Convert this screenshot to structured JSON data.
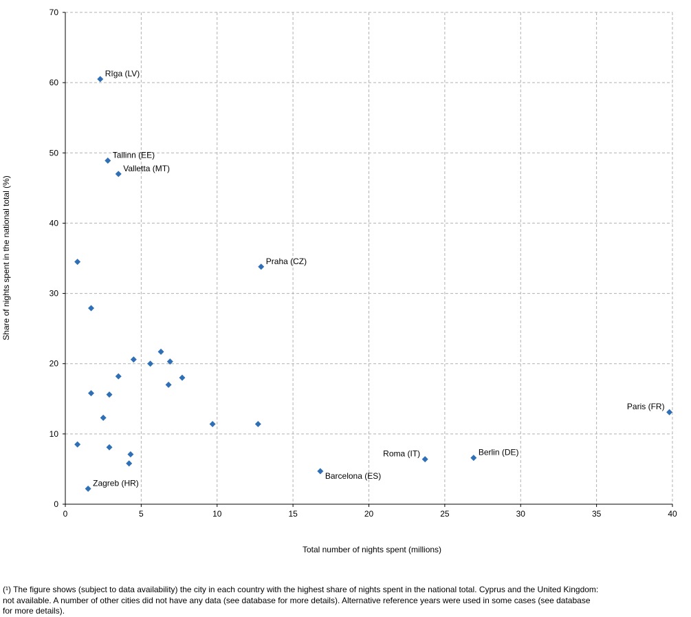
{
  "chart_data": {
    "type": "scatter",
    "xlabel": "Total number of nights spent (millions)",
    "ylabel": "Share of nights spent in the national total (%)",
    "xlim": [
      0,
      40
    ],
    "ylim": [
      0,
      70
    ],
    "x_ticks": [
      0,
      5,
      10,
      15,
      20,
      25,
      30,
      35,
      40
    ],
    "y_ticks": [
      0,
      10,
      20,
      30,
      40,
      50,
      60,
      70
    ],
    "grid": true,
    "marker_color": "#2e6fb5",
    "points": [
      {
        "x": 2.3,
        "y": 60.5,
        "label": "Rīga (LV)",
        "label_side": "right"
      },
      {
        "x": 2.8,
        "y": 48.9,
        "label": "Tallinn (EE)",
        "label_side": "right"
      },
      {
        "x": 3.5,
        "y": 47.0,
        "label": "Valletta (MT)",
        "label_side": "right"
      },
      {
        "x": 0.8,
        "y": 34.5,
        "label": ""
      },
      {
        "x": 12.9,
        "y": 33.8,
        "label": "Praha (CZ)",
        "label_side": "right"
      },
      {
        "x": 1.7,
        "y": 27.9,
        "label": ""
      },
      {
        "x": 6.3,
        "y": 21.7,
        "label": ""
      },
      {
        "x": 4.5,
        "y": 20.6,
        "label": ""
      },
      {
        "x": 6.9,
        "y": 20.3,
        "label": ""
      },
      {
        "x": 5.6,
        "y": 20.0,
        "label": ""
      },
      {
        "x": 3.5,
        "y": 18.2,
        "label": ""
      },
      {
        "x": 7.7,
        "y": 18.0,
        "label": ""
      },
      {
        "x": 6.8,
        "y": 17.0,
        "label": ""
      },
      {
        "x": 1.7,
        "y": 15.8,
        "label": ""
      },
      {
        "x": 2.9,
        "y": 15.6,
        "label": ""
      },
      {
        "x": 39.8,
        "y": 13.1,
        "label": "Paris (FR)",
        "label_side": "left"
      },
      {
        "x": 2.5,
        "y": 12.3,
        "label": ""
      },
      {
        "x": 9.7,
        "y": 11.4,
        "label": ""
      },
      {
        "x": 12.7,
        "y": 11.4,
        "label": ""
      },
      {
        "x": 0.8,
        "y": 8.5,
        "label": ""
      },
      {
        "x": 2.9,
        "y": 8.1,
        "label": ""
      },
      {
        "x": 4.3,
        "y": 7.1,
        "label": ""
      },
      {
        "x": 26.9,
        "y": 6.6,
        "label": "Berlin (DE)",
        "label_side": "right"
      },
      {
        "x": 23.7,
        "y": 6.4,
        "label": "Roma (IT)",
        "label_side": "left"
      },
      {
        "x": 4.2,
        "y": 5.8,
        "label": ""
      },
      {
        "x": 16.8,
        "y": 4.7,
        "label": "Barcelona (ES)",
        "label_side": "below-right"
      },
      {
        "x": 1.5,
        "y": 2.2,
        "label": "Zagreb (HR)",
        "label_side": "right"
      }
    ]
  },
  "footnote": {
    "line1": "(¹) The figure shows (subject to data availability) the city in each country with the highest share of nights spent in the national total. Cyprus and the United Kingdom:",
    "line2": "not available. A number of other cities did not have any data (see database for more details). Alternative reference years were used in some cases (see database",
    "line3": "for more details)."
  }
}
